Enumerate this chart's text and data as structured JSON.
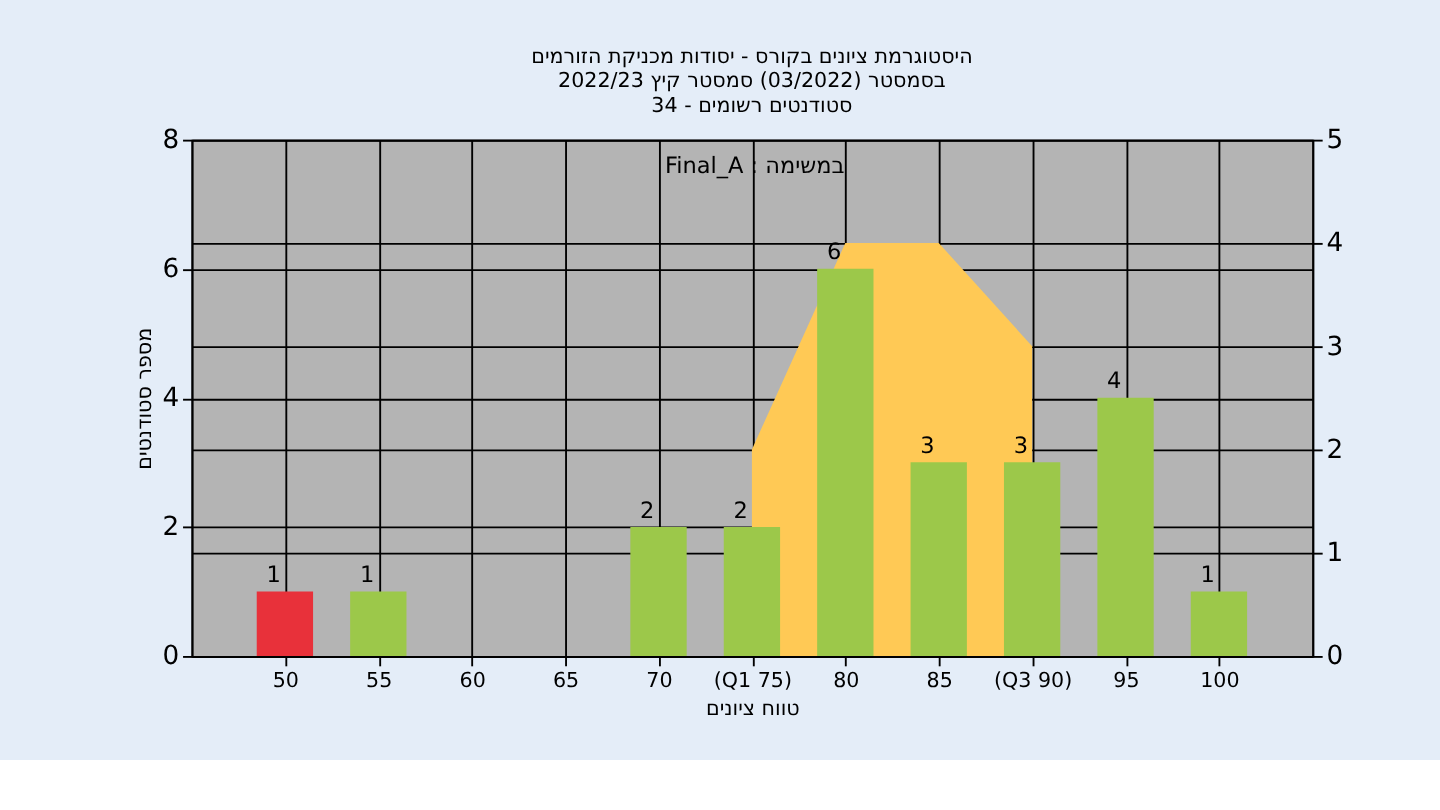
{
  "chart_data": {
    "type": "bar",
    "title": [
      "היסטוגרמת ציונים בקורס - יסודות מכניקת הזורמים",
      "בסמסטר  (03/2022)  סמסטר קיץ 2022/23",
      "סטודנטים רשומים - 34"
    ],
    "xlabel": "טווח ציונים",
    "ylabel": "מספר סטודנטים",
    "annotations": [
      "Final_A : במשימה"
    ],
    "categories": [
      "50",
      "55",
      "60",
      "65",
      "70",
      "(Q1 75)",
      "80",
      "85",
      "(Q3 90)",
      "95",
      "100"
    ],
    "series": [
      {
        "type": "area",
        "axis": "y2",
        "color": "#ffc955",
        "values": [
          null,
          null,
          null,
          null,
          null,
          2,
          4,
          4,
          3,
          null,
          null
        ]
      },
      {
        "colors": [
          "#e8313a",
          "#9cc84a",
          "#9cc84a",
          "#9cc84a",
          "#9cc84a",
          "#9cc84a",
          "#9cc84a",
          "#9cc84a",
          "#9cc84a",
          "#9cc84a",
          "#9cc84a"
        ],
        "values": [
          1,
          1,
          0,
          0,
          2,
          2,
          6,
          3,
          3,
          4,
          1
        ],
        "value_labels": [
          "1",
          "1",
          null,
          null,
          "2",
          "2",
          "6",
          "3",
          "3",
          "4",
          "1"
        ]
      }
    ],
    "ylim": [
      0,
      8
    ],
    "yticks": [
      0,
      2,
      4,
      6,
      8
    ],
    "y2lim": [
      0,
      5
    ],
    "y2ticks": [
      0,
      1,
      2,
      3,
      4,
      5
    ],
    "grid": true
  }
}
